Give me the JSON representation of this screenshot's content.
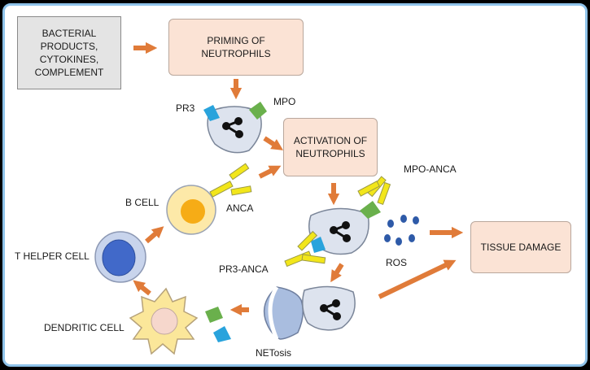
{
  "boxes": {
    "bacterial_products": "BACTERIAL\nPRODUCTS,\nCYTOKINES,\nCOMPLEMENT",
    "priming": "PRIMING OF\nNEUTROPHILS",
    "activation": "ACTIVATION OF\nNEUTROPHILS",
    "tissue_damage": "TISSUE DAMAGE"
  },
  "labels": {
    "pr3": "PR3",
    "mpo": "MPO",
    "b_cell": "B CELL",
    "anca": "ANCA",
    "mpo_anca": "MPO-ANCA",
    "ros": "ROS",
    "t_helper_cell": "T HELPER CELL",
    "pr3_anca": "PR3-ANCA",
    "dendritic_cell": "DENDRITIC CELL",
    "netosis": "NETosis"
  },
  "colors": {
    "frame_border": "#8fc3ea",
    "arrow": "#e07b39",
    "neutrophil": "#dde3ee",
    "pr3_antigen": "#29a3dc",
    "mpo_antigen": "#6ab04c",
    "antibody": "#f2e61a",
    "b_cell": "#fde9a8",
    "b_cell_nucleus": "#f6ac16",
    "t_cell": "#c8d4ec",
    "t_cell_nucleus": "#4169c9",
    "dendritic": "#fbe79a",
    "ros": "#2e5aa8",
    "net": "#a9bddf"
  }
}
